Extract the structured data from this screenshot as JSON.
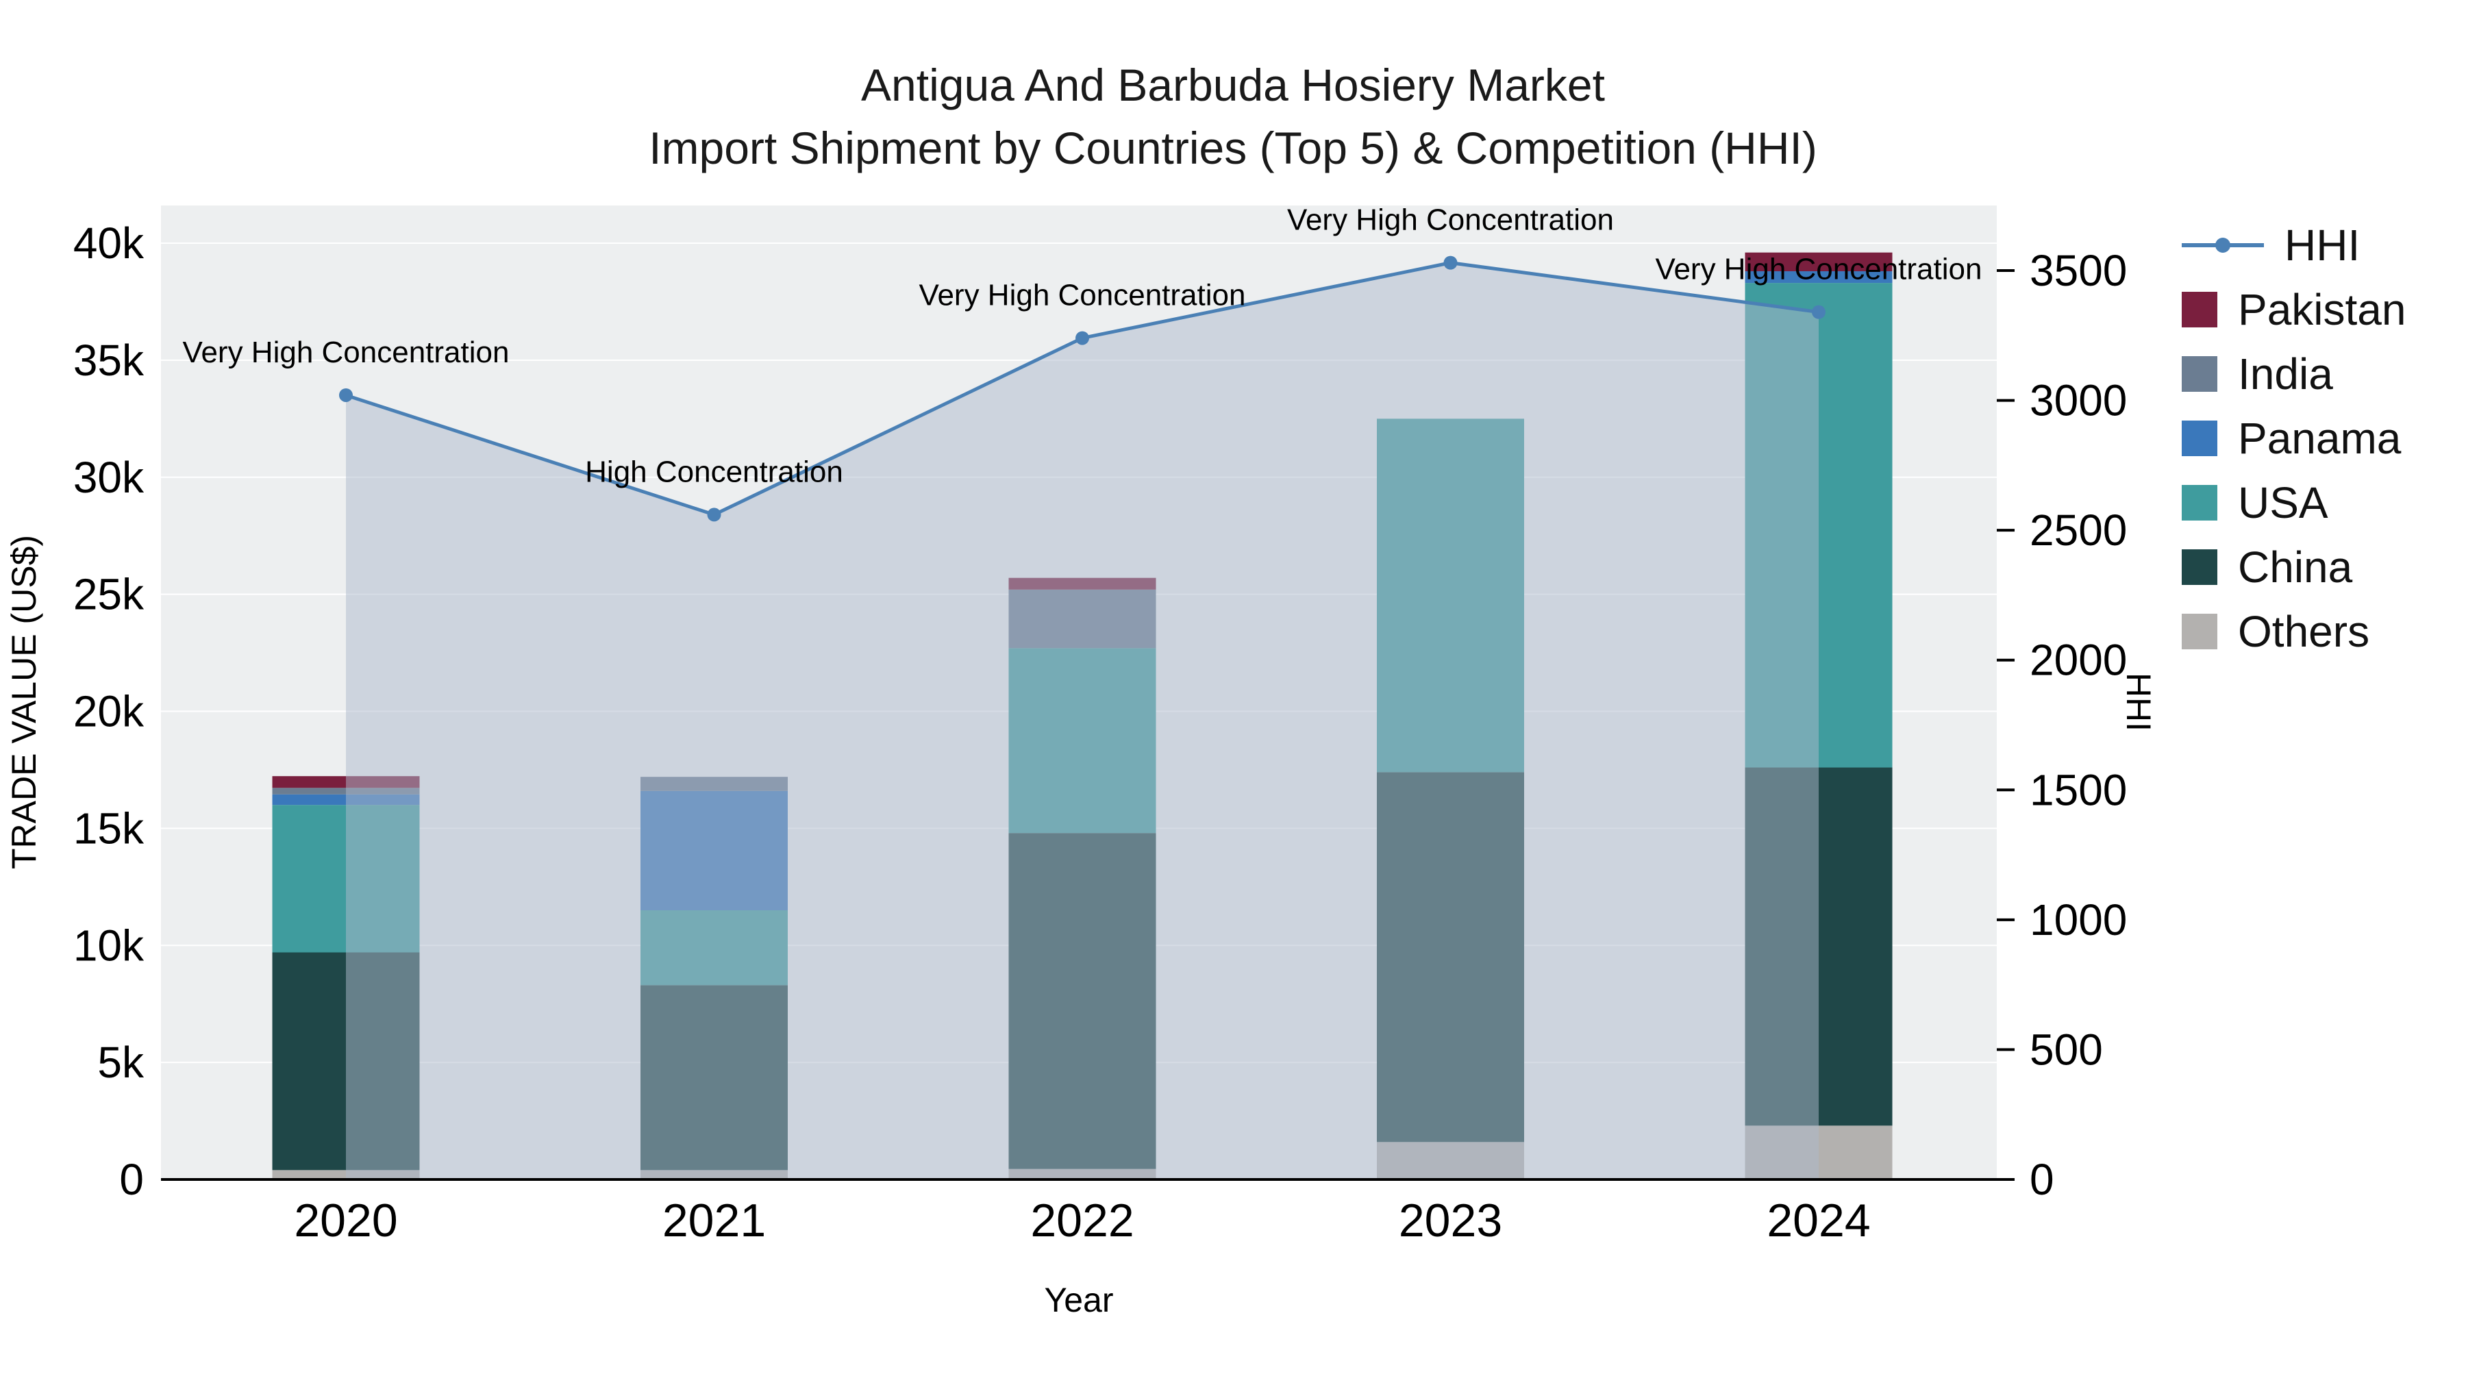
{
  "chart_data": {
    "type": "bar",
    "title": "Antigua And Barbuda Hosiery Market",
    "subtitle": "Import Shipment by Countries (Top 5) & Competition (HHI)",
    "xlabel": "Year",
    "ylabel_left": "TRADE VALUE (US$)",
    "ylabel_right": "HHI",
    "categories": [
      "2020",
      "2021",
      "2022",
      "2023",
      "2024"
    ],
    "bar_series": [
      {
        "name": "Others",
        "color": "#b3b1af",
        "values": [
          400,
          400,
          450,
          1600,
          2300
        ]
      },
      {
        "name": "China",
        "color": "#1f4748",
        "values": [
          9300,
          7900,
          14350,
          15800,
          15300
        ]
      },
      {
        "name": "USA",
        "color": "#3f9c9e",
        "values": [
          6300,
          3200,
          7900,
          15100,
          20700
        ]
      },
      {
        "name": "Panama",
        "color": "#3a78bb",
        "values": [
          450,
          5100,
          0,
          0,
          500
        ]
      },
      {
        "name": "India",
        "color": "#6b7d92",
        "values": [
          280,
          600,
          2500,
          0,
          0
        ]
      },
      {
        "name": "Pakistan",
        "color": "#7a1f3e",
        "values": [
          500,
          0,
          500,
          0,
          800
        ]
      }
    ],
    "hhi_series": {
      "name": "HHI",
      "color": "#4a80b5",
      "values": [
        3020,
        2560,
        3240,
        3530,
        3340
      ]
    },
    "annotations": [
      "Very High Concentration",
      "High Concentration",
      "Very High Concentration",
      "Very High Concentration",
      "Very High Concentration"
    ],
    "left_axis": {
      "max": 40000,
      "ticks": [
        {
          "v": 0,
          "label": "0"
        },
        {
          "v": 5000,
          "label": "5k"
        },
        {
          "v": 10000,
          "label": "10k"
        },
        {
          "v": 15000,
          "label": "15k"
        },
        {
          "v": 20000,
          "label": "20k"
        },
        {
          "v": 25000,
          "label": "25k"
        },
        {
          "v": 30000,
          "label": "30k"
        },
        {
          "v": 35000,
          "label": "35k"
        },
        {
          "v": 40000,
          "label": "40k"
        }
      ]
    },
    "right_axis": {
      "max": 3500,
      "ticks": [
        {
          "v": 0,
          "label": "0"
        },
        {
          "v": 500,
          "label": "500"
        },
        {
          "v": 1000,
          "label": "1000"
        },
        {
          "v": 1500,
          "label": "1500"
        },
        {
          "v": 2000,
          "label": "2000"
        },
        {
          "v": 2500,
          "label": "2500"
        },
        {
          "v": 3000,
          "label": "3000"
        },
        {
          "v": 3500,
          "label": "3500"
        }
      ]
    },
    "area_fill": {
      "color": "#adb9cc",
      "opacity": 0.5
    },
    "plot_bg": "#edeff0",
    "grid_color": "#ffffff",
    "legend_position": "right"
  },
  "legend": {
    "items": [
      {
        "id": "hhi",
        "label": "HHI",
        "type": "line",
        "color": "#4a80b5"
      },
      {
        "id": "pakistan",
        "label": "Pakistan",
        "type": "square",
        "color": "#7a1f3e"
      },
      {
        "id": "india",
        "label": "India",
        "type": "square",
        "color": "#6b7d92"
      },
      {
        "id": "panama",
        "label": "Panama",
        "type": "square",
        "color": "#3a78bb"
      },
      {
        "id": "usa",
        "label": "USA",
        "type": "square",
        "color": "#3f9c9e"
      },
      {
        "id": "china",
        "label": "China",
        "type": "square",
        "color": "#1f4748"
      },
      {
        "id": "others",
        "label": "Others",
        "type": "square",
        "color": "#b3b1af"
      }
    ]
  }
}
